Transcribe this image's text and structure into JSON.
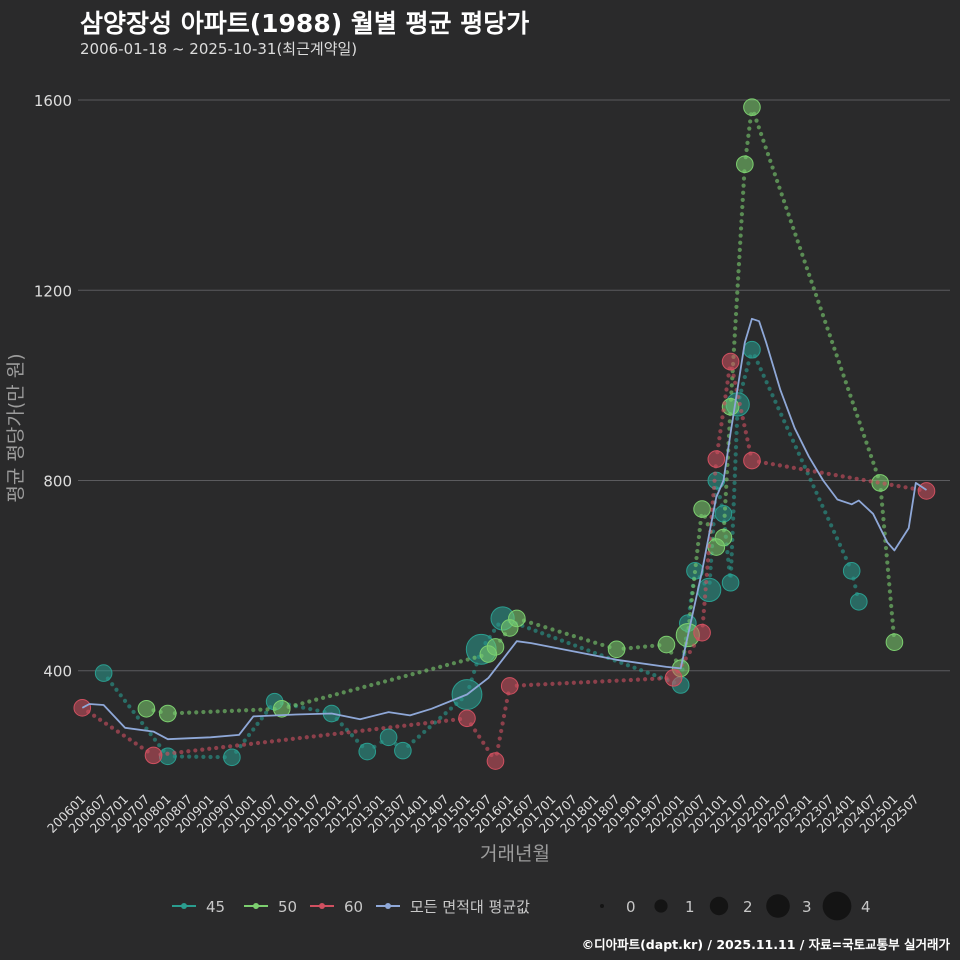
{
  "header": {
    "title": "삼양장성 아파트(1988) 월별 평균 평당가",
    "subtitle": "2006-01-18 ~ 2025-10-31(최근계약일)"
  },
  "caption": "©디아파트(dapt.kr) / 2025.11.11 / 자료=국토교통부 실거래가",
  "colors": {
    "background": "#2a2a2b",
    "grid": "#5b5b5e",
    "s45": "#2a9d8f",
    "s50": "#7ccf6f",
    "s60": "#d05060",
    "avg": "#8fa8d8"
  },
  "chart_data": {
    "type": "scatter",
    "title": "삼양장성 아파트(1988) 월별 평균 평당가",
    "xlabel": "거래년월",
    "ylabel": "평균 평당가(만 원)",
    "x_range": [
      2005.9,
      2026.3
    ],
    "ylim": [
      145,
      1680
    ],
    "y_ticks": [
      400,
      800,
      1200,
      1600
    ],
    "x_ticks": [
      "200601",
      "200607",
      "200701",
      "200707",
      "200801",
      "200807",
      "200901",
      "200907",
      "201001",
      "201007",
      "201101",
      "201107",
      "201201",
      "201207",
      "201301",
      "201307",
      "201401",
      "201407",
      "201501",
      "201507",
      "201601",
      "201607",
      "201701",
      "201707",
      "201801",
      "201807",
      "201901",
      "201907",
      "202001",
      "202007",
      "202101",
      "202107",
      "202201",
      "202207",
      "202301",
      "202307",
      "202401",
      "202407",
      "202501",
      "202507"
    ],
    "legend": {
      "position": "bottom",
      "series_labels": [
        "45",
        "50",
        "60",
        "모든 면적대 평균값"
      ],
      "size_labels": [
        "0",
        "1",
        "2",
        "3",
        "4"
      ]
    },
    "series": [
      {
        "name": "45",
        "color": "#2a9d8f",
        "points": [
          [
            "200607",
            395,
            1
          ],
          [
            "200801",
            220,
            1
          ],
          [
            "200907",
            218,
            1
          ],
          [
            "201007",
            335,
            1
          ],
          [
            "201111",
            310,
            1
          ],
          [
            "201209",
            230,
            1
          ],
          [
            "201303",
            260,
            1
          ],
          [
            "201307",
            232,
            1
          ],
          [
            "201501",
            350,
            3
          ],
          [
            "201505",
            445,
            3
          ],
          [
            "201511",
            510,
            2
          ],
          [
            "202001",
            370,
            1
          ],
          [
            "202003",
            500,
            1
          ],
          [
            "202005",
            610,
            1
          ],
          [
            "202009",
            570,
            2
          ],
          [
            "202011",
            800,
            1
          ],
          [
            "202101",
            730,
            1
          ],
          [
            "202103",
            585,
            1
          ],
          [
            "202105",
            960,
            2
          ],
          [
            "202109",
            1075,
            1
          ],
          [
            "202401",
            610,
            1
          ],
          [
            "202403",
            545,
            1
          ]
        ]
      },
      {
        "name": "50",
        "color": "#7ccf6f",
        "points": [
          [
            "200707",
            320,
            1
          ],
          [
            "200801",
            310,
            1
          ],
          [
            "201009",
            320,
            1
          ],
          [
            "201507",
            435,
            1
          ],
          [
            "201509",
            450,
            1
          ],
          [
            "201601",
            490,
            1
          ],
          [
            "201603",
            510,
            1
          ],
          [
            "201807",
            445,
            1
          ],
          [
            "201909",
            455,
            1
          ],
          [
            "202001",
            405,
            1
          ],
          [
            "202003",
            475,
            2
          ],
          [
            "202007",
            740,
            1
          ],
          [
            "202011",
            660,
            1
          ],
          [
            "202101",
            680,
            1
          ],
          [
            "202103",
            955,
            1
          ],
          [
            "202107",
            1465,
            1
          ],
          [
            "202109",
            1585,
            1
          ],
          [
            "202409",
            795,
            1
          ],
          [
            "202501",
            460,
            1
          ]
        ]
      },
      {
        "name": "60",
        "color": "#d05060",
        "points": [
          [
            "200601",
            322,
            1
          ],
          [
            "200709",
            222,
            1
          ],
          [
            "201501",
            300,
            1
          ],
          [
            "201509",
            210,
            1
          ],
          [
            "201601",
            368,
            1
          ],
          [
            "201911",
            385,
            1
          ],
          [
            "202007",
            480,
            1
          ],
          [
            "202011",
            845,
            1
          ],
          [
            "202103",
            1050,
            1
          ],
          [
            "202109",
            842,
            1
          ],
          [
            "202510",
            778,
            1
          ]
        ]
      }
    ],
    "average_line": {
      "name": "모든 면적대 평균값",
      "color": "#8fa8d8",
      "points": [
        [
          "200601",
          322
        ],
        [
          "200603",
          330
        ],
        [
          "200607",
          328
        ],
        [
          "200701",
          280
        ],
        [
          "200709",
          272
        ],
        [
          "200801",
          256
        ],
        [
          "200901",
          260
        ],
        [
          "200909",
          265
        ],
        [
          "201001",
          304
        ],
        [
          "201101",
          308
        ],
        [
          "201111",
          310
        ],
        [
          "201207",
          298
        ],
        [
          "201303",
          313
        ],
        [
          "201309",
          306
        ],
        [
          "201403",
          320
        ],
        [
          "201501",
          350
        ],
        [
          "201507",
          385
        ],
        [
          "201603",
          462
        ],
        [
          "201607",
          458
        ],
        [
          "201807",
          423
        ],
        [
          "201909",
          408
        ],
        [
          "202001",
          405
        ],
        [
          "202007",
          610
        ],
        [
          "202011",
          765
        ],
        [
          "202101",
          800
        ],
        [
          "202103",
          900
        ],
        [
          "202107",
          1090
        ],
        [
          "202109",
          1140
        ],
        [
          "202111",
          1135
        ],
        [
          "202201",
          1090
        ],
        [
          "202205",
          990
        ],
        [
          "202209",
          910
        ],
        [
          "202301",
          850
        ],
        [
          "202305",
          800
        ],
        [
          "202309",
          760
        ],
        [
          "202401",
          750
        ],
        [
          "202403",
          758
        ],
        [
          "202407",
          730
        ],
        [
          "202411",
          670
        ],
        [
          "202501",
          653
        ],
        [
          "202505",
          700
        ],
        [
          "202507",
          795
        ],
        [
          "202510",
          780
        ]
      ]
    }
  }
}
